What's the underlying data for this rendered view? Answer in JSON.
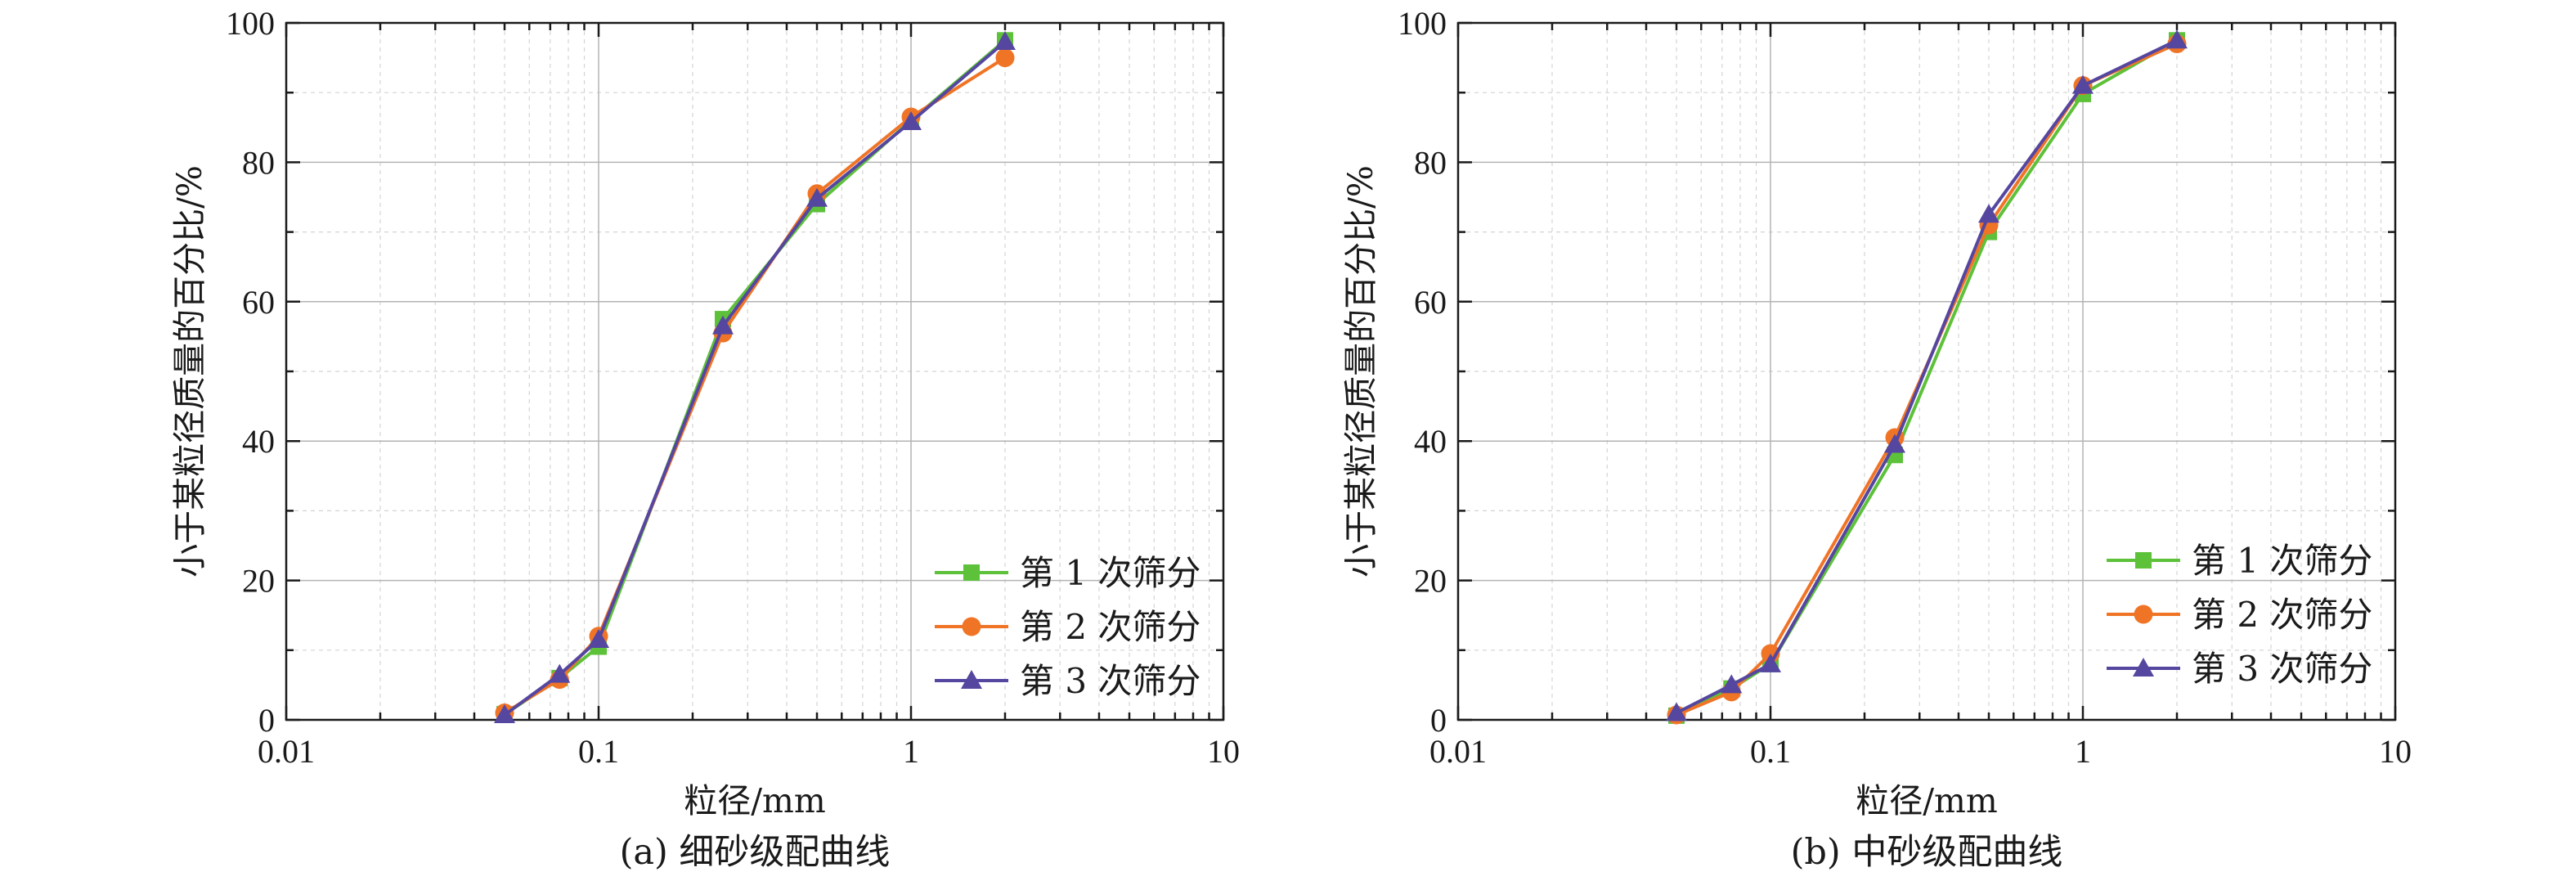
{
  "chart_data": [
    {
      "type": "line",
      "caption": "(a) 细砂级配曲线",
      "xlabel": "粒径/mm",
      "ylabel": "小于某粒径质量的百分比/%",
      "xscale": "log",
      "xlim": [
        0.01,
        10
      ],
      "ylim": [
        0,
        100
      ],
      "x_ticks": [
        "0.01",
        "0.1",
        "1",
        "10"
      ],
      "y_ticks": [
        "0",
        "20",
        "40",
        "60",
        "80",
        "100"
      ],
      "grid": true,
      "legend": "bottom-right",
      "series": [
        {
          "name": "第 1 次筛分",
          "color": "#5dc13a",
          "marker": "square",
          "x": [
            0.05,
            0.075,
            0.1,
            0.25,
            0.5,
            1,
            2
          ],
          "y": [
            0.8,
            6.0,
            10.5,
            57.5,
            74.0,
            86.0,
            97.5
          ]
        },
        {
          "name": "第 2 次筛分",
          "color": "#f07426",
          "marker": "circle",
          "x": [
            0.05,
            0.075,
            0.1,
            0.25,
            0.5,
            1,
            2
          ],
          "y": [
            1.0,
            5.8,
            12.0,
            55.5,
            75.5,
            86.5,
            95.0
          ]
        },
        {
          "name": "第 3 次筛分",
          "color": "#5546a0",
          "marker": "triangle",
          "x": [
            0.05,
            0.075,
            0.1,
            0.25,
            0.5,
            1,
            2
          ],
          "y": [
            0.7,
            6.5,
            11.5,
            56.5,
            74.8,
            85.8,
            97.3
          ]
        }
      ]
    },
    {
      "type": "line",
      "caption": "(b) 中砂级配曲线",
      "xlabel": "粒径/mm",
      "ylabel": "小于某粒径质量的百分比/%",
      "xscale": "log",
      "xlim": [
        0.01,
        10
      ],
      "ylim": [
        0,
        100
      ],
      "x_ticks": [
        "0.01",
        "0.1",
        "1",
        "10"
      ],
      "y_ticks": [
        "0",
        "20",
        "40",
        "60",
        "80",
        "100"
      ],
      "grid": true,
      "legend": "bottom-right",
      "series": [
        {
          "name": "第 1 次筛分",
          "color": "#5dc13a",
          "marker": "square",
          "x": [
            0.05,
            0.075,
            0.1,
            0.25,
            0.5,
            1,
            2
          ],
          "y": [
            0.6,
            4.5,
            8.0,
            38.0,
            70.0,
            89.8,
            97.5
          ]
        },
        {
          "name": "第 2 次筛分",
          "color": "#f07426",
          "marker": "circle",
          "x": [
            0.05,
            0.075,
            0.1,
            0.25,
            0.5,
            1,
            2
          ],
          "y": [
            0.7,
            4.0,
            9.5,
            40.5,
            71.0,
            91.0,
            97.0
          ]
        },
        {
          "name": "第 3 次筛分",
          "color": "#5546a0",
          "marker": "triangle",
          "x": [
            0.05,
            0.075,
            0.1,
            0.25,
            0.5,
            1,
            2
          ],
          "y": [
            1.0,
            5.0,
            8.0,
            39.5,
            72.5,
            91.0,
            97.5
          ]
        }
      ]
    }
  ]
}
